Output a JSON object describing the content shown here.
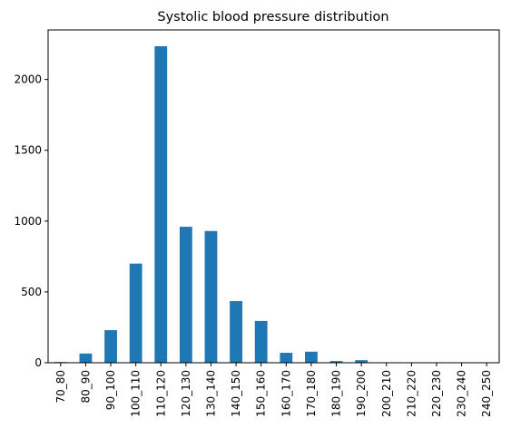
{
  "chart_data": {
    "type": "bar",
    "title": "Systolic blood pressure distribution",
    "xlabel": "",
    "ylabel": "",
    "categories": [
      "70_80",
      "80_90",
      "90_100",
      "100_110",
      "110_120",
      "120_130",
      "130_140",
      "140_150",
      "150_160",
      "160_170",
      "170_180",
      "180_190",
      "190_200",
      "200_210",
      "210_220",
      "220_230",
      "230_240",
      "240_250"
    ],
    "values": [
      5,
      65,
      230,
      700,
      2235,
      960,
      930,
      435,
      295,
      70,
      78,
      12,
      18,
      0,
      0,
      0,
      0,
      0
    ],
    "ylim": [
      0,
      2350
    ],
    "yticks": [
      0,
      500,
      1000,
      1500,
      2000
    ],
    "bar_color": "#1f77b4",
    "grid": false,
    "legend": "none"
  }
}
